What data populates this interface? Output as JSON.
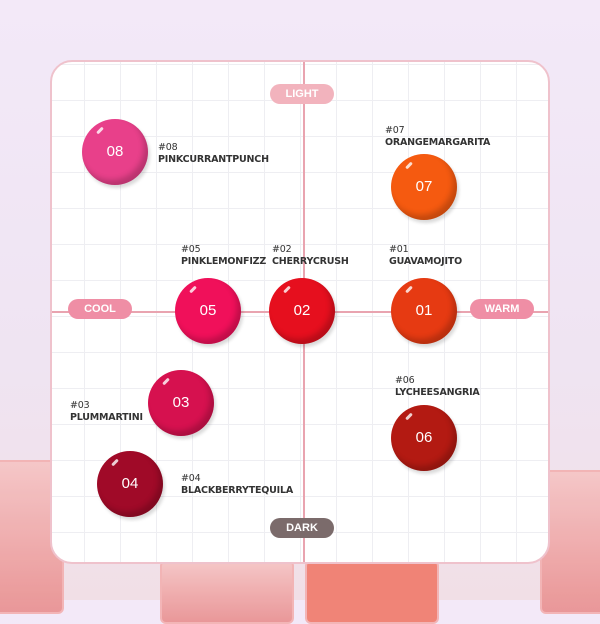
{
  "axes": {
    "top": "LIGHT",
    "bottom": "DARK",
    "left": "COOL",
    "right": "WARM",
    "colors": {
      "light": "#f2b3bd",
      "cool": "#ef8ea5",
      "warm": "#ef8ea5",
      "dark": "#7b6b6b"
    }
  },
  "shades": [
    {
      "num": "08",
      "code": "#08",
      "name": "PINKCURRANTPUNCH",
      "color": "#e8408a"
    },
    {
      "num": "07",
      "code": "#07",
      "name": "ORANGEMARGARITA",
      "color": "#f55a10"
    },
    {
      "num": "05",
      "code": "#05",
      "name": "PINKLEMONFIZZ",
      "color": "#f0105a"
    },
    {
      "num": "02",
      "code": "#02",
      "name": "CHERRYCRUSH",
      "color": "#e60f1e"
    },
    {
      "num": "01",
      "code": "#01",
      "name": "GUAVAMOJITO",
      "color": "#e63a12"
    },
    {
      "num": "03",
      "code": "#03",
      "name": "PLUMMARTINI",
      "color": "#d6114f"
    },
    {
      "num": "06",
      "code": "#06",
      "name": "LYCHEESANGRIA",
      "color": "#b31a12"
    },
    {
      "num": "04",
      "code": "#04",
      "name": "BLACKBERRYTEQUILA",
      "color": "#a00a28"
    }
  ]
}
